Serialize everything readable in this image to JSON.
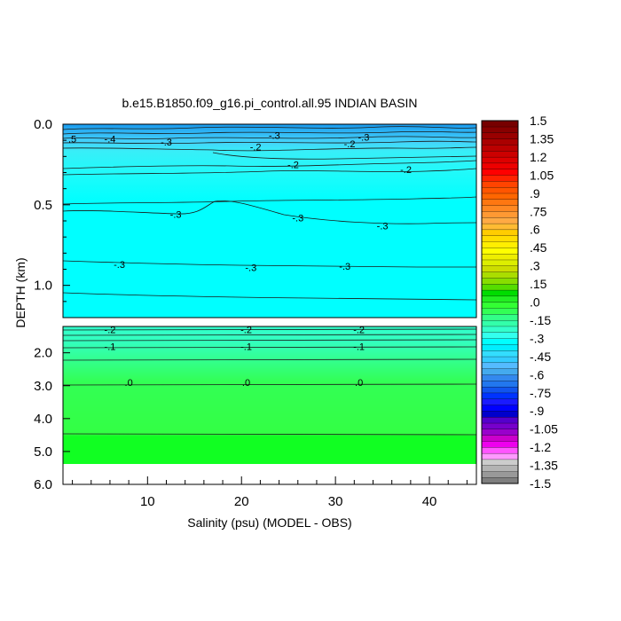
{
  "chart_data": {
    "type": "heatmap",
    "title": "b.e15.B1850.f09_g16.pi_control.all.95 INDIAN BASIN",
    "xlabel": "Salinity (psu) (MODEL - OBS)",
    "ylabel": "DEPTH (km)",
    "xlim": [
      1,
      45
    ],
    "x_ticks": [
      "10",
      "20",
      "30",
      "40"
    ],
    "upper_panel": {
      "ylim": [
        0.0,
        1.2
      ],
      "y_ticks": [
        "0.0",
        "0.5",
        "1.0"
      ],
      "contour_labels": [
        {
          "text": ".5",
          "x": 2.0,
          "depth": 0.09
        },
        {
          "text": "-.4",
          "x": 6.0,
          "depth": 0.09
        },
        {
          "text": "-.3",
          "x": 12.0,
          "depth": 0.11
        },
        {
          "text": "-.3",
          "x": 23.5,
          "depth": 0.07
        },
        {
          "text": "-.3",
          "x": 33.0,
          "depth": 0.08
        },
        {
          "text": "-.2",
          "x": 21.5,
          "depth": 0.14
        },
        {
          "text": "-.2",
          "x": 31.5,
          "depth": 0.12
        },
        {
          "text": "-.2",
          "x": 25.5,
          "depth": 0.25
        },
        {
          "text": "-.2",
          "x": 37.5,
          "depth": 0.28
        },
        {
          "text": "-.3",
          "x": 13.0,
          "depth": 0.56
        },
        {
          "text": "-.3",
          "x": 26.0,
          "depth": 0.58
        },
        {
          "text": "-.3",
          "x": 35.0,
          "depth": 0.63
        },
        {
          "text": "-.3",
          "x": 7.0,
          "depth": 0.87
        },
        {
          "text": "-.3",
          "x": 21.0,
          "depth": 0.89
        },
        {
          "text": "-.3",
          "x": 31.0,
          "depth": 0.88
        }
      ]
    },
    "lower_panel": {
      "ylim": [
        1.2,
        6.0
      ],
      "y_ticks": [
        "2.0",
        "3.0",
        "4.0",
        "5.0",
        "6.0"
      ],
      "data_bottom_depth": 5.35,
      "contour_labels": [
        {
          "text": "-.2",
          "x": 6.0,
          "depth": 1.3
        },
        {
          "text": "-.2",
          "x": 20.5,
          "depth": 1.3
        },
        {
          "text": "-.2",
          "x": 32.5,
          "depth": 1.3
        },
        {
          "text": "-.1",
          "x": 6.0,
          "depth": 1.8
        },
        {
          "text": "-.1",
          "x": 20.5,
          "depth": 1.8
        },
        {
          "text": "-.1",
          "x": 32.5,
          "depth": 1.8
        },
        {
          "text": ".0",
          "x": 8.0,
          "depth": 2.9
        },
        {
          "text": ".0",
          "x": 20.5,
          "depth": 2.9
        },
        {
          "text": ".0",
          "x": 32.5,
          "depth": 2.9
        }
      ]
    },
    "colorbar": {
      "min": -1.5,
      "max": 1.5,
      "labels": [
        "1.5",
        "1.35",
        "1.2",
        "1.05",
        ".9",
        ".75",
        ".6",
        ".45",
        ".3",
        ".15",
        ".0",
        "-.15",
        "-.3",
        "-.45",
        "-.6",
        "-.75",
        "-.9",
        "-1.05",
        "-1.2",
        "-1.35",
        "-1.5"
      ],
      "colors": [
        "#7f7f7f",
        "#999999",
        "#b3b3b3",
        "#cccccc",
        "#ff99ff",
        "#ff55ff",
        "#ee00ee",
        "#cc00cc",
        "#9900cc",
        "#7700cc",
        "#5500cc",
        "#0000cc",
        "#0000ff",
        "#1a1aff",
        "#0033ff",
        "#1155ee",
        "#2277ee",
        "#3388ee",
        "#44aaee",
        "#55bbff",
        "#33ccff",
        "#33ddff",
        "#00eeff",
        "#00ffff",
        "#33ffee",
        "#33ffcc",
        "#33ffaa",
        "#33ff88",
        "#33ff55",
        "#33ff33",
        "#22ee22",
        "#00dd00",
        "#55dd00",
        "#88dd00",
        "#aadd00",
        "#ccdd00",
        "#ddee00",
        "#eeee00",
        "#ffff00",
        "#ffee00",
        "#ffdd00",
        "#ffcc00",
        "#ffbb33",
        "#ffaa44",
        "#ff9933",
        "#ff8822",
        "#ff7711",
        "#ff6600",
        "#ff5500",
        "#ff4400",
        "#ff2200",
        "#ff0000",
        "#ee0000",
        "#dd0000",
        "#cc0000",
        "#bb0000",
        "#aa0000",
        "#990000",
        "#880000",
        "#770000"
      ]
    }
  }
}
